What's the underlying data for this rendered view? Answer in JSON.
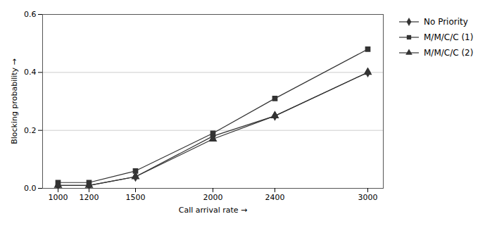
{
  "chart_data": {
    "type": "line",
    "x": [
      1000,
      1200,
      1500,
      2000,
      2400,
      3000
    ],
    "series": [
      {
        "name": "No Priority",
        "color": "#333333",
        "marker": "diamond",
        "values": [
          0.01,
          0.01,
          0.04,
          0.18,
          0.25,
          0.4
        ]
      },
      {
        "name": "M/M/C/C (1)",
        "color": "#333333",
        "marker": "square",
        "values": [
          0.02,
          0.02,
          0.06,
          0.19,
          0.31,
          0.48
        ]
      },
      {
        "name": "M/M/C/C (2)",
        "color": "#333333",
        "marker": "triangle",
        "values": [
          0.01,
          0.01,
          0.04,
          0.17,
          0.25,
          0.4
        ]
      }
    ],
    "xlabel": "Call arrival rate",
    "ylabel": "Blocking probability",
    "xlim": [
      900,
      3100
    ],
    "ylim": [
      0,
      0.6
    ],
    "xticks": [
      1000,
      1200,
      1500,
      2000,
      2400,
      3000
    ],
    "yticks": [
      {
        "value": 0,
        "label": "0.0"
      },
      0.2,
      0.4,
      0.6
    ],
    "grid": true,
    "legend": "right"
  }
}
